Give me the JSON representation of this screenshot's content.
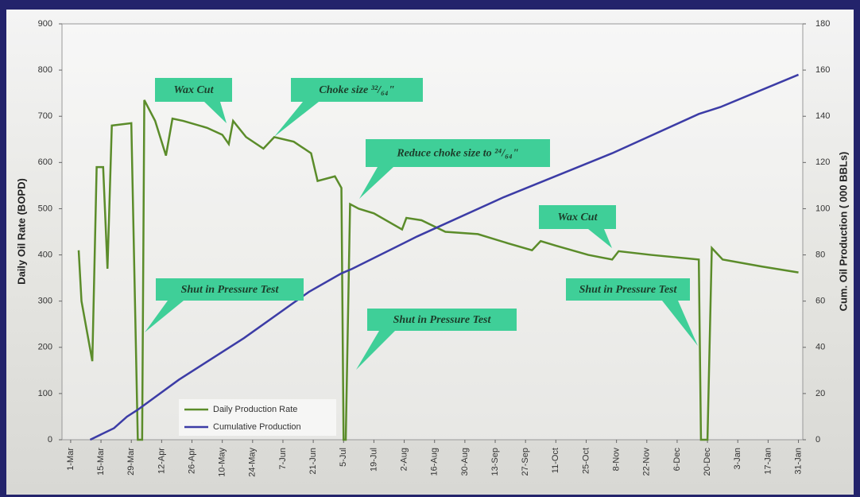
{
  "chart_data": {
    "type": "line",
    "y_label": "Daily Oil Rate (BOPD)",
    "y2_label": "Cum. Oil Production ( 000 BBLs)",
    "xlim": [
      -4,
      338
    ],
    "xticks": [
      {
        "value": 0,
        "label": "1-Mar"
      },
      {
        "value": 14,
        "label": "15-Mar"
      },
      {
        "value": 28,
        "label": "29-Mar"
      },
      {
        "value": 42,
        "label": "12-Apr"
      },
      {
        "value": 56,
        "label": "26-Apr"
      },
      {
        "value": 70,
        "label": "10-May"
      },
      {
        "value": 84,
        "label": "24-May"
      },
      {
        "value": 98,
        "label": "7-Jun"
      },
      {
        "value": 112,
        "label": "21-Jun"
      },
      {
        "value": 126,
        "label": "5-Jul"
      },
      {
        "value": 140,
        "label": "19-Jul"
      },
      {
        "value": 154,
        "label": "2-Aug"
      },
      {
        "value": 168,
        "label": "16-Aug"
      },
      {
        "value": 182,
        "label": "30-Aug"
      },
      {
        "value": 196,
        "label": "13-Sep"
      },
      {
        "value": 210,
        "label": "27-Sep"
      },
      {
        "value": 224,
        "label": "11-Oct"
      },
      {
        "value": 238,
        "label": "25-Oct"
      },
      {
        "value": 252,
        "label": "8-Nov"
      },
      {
        "value": 266,
        "label": "22-Nov"
      },
      {
        "value": 280,
        "label": "6-Dec"
      },
      {
        "value": 294,
        "label": "20-Dec"
      },
      {
        "value": 308,
        "label": "3-Jan"
      },
      {
        "value": 322,
        "label": "17-Jan"
      },
      {
        "value": 336,
        "label": "31-Jan"
      }
    ],
    "ylim": [
      0,
      900
    ],
    "yticks": [
      0,
      100,
      200,
      300,
      400,
      500,
      600,
      700,
      800,
      900
    ],
    "y2lim": [
      0,
      180
    ],
    "y2ticks": [
      0,
      20,
      40,
      60,
      80,
      100,
      120,
      140,
      160,
      180
    ],
    "series": [
      {
        "name": "Daily Production Rate",
        "color": "#5b8c2a",
        "x": [
          3.7,
          5,
          10,
          12,
          15,
          17,
          19,
          28,
          31,
          33,
          34,
          39,
          44,
          47,
          52,
          63,
          70,
          73,
          75,
          81,
          89,
          94,
          103,
          111,
          114,
          122,
          125,
          126,
          127,
          129,
          133,
          140,
          153,
          155,
          162,
          173,
          188,
          202,
          213,
          217,
          224,
          239,
          250,
          253,
          268,
          290,
          291,
          294,
          296,
          301,
          319,
          336
        ],
        "values": [
          410,
          300,
          170,
          590,
          590,
          370,
          680,
          685,
          0,
          0,
          735,
          690,
          615,
          695,
          690,
          675,
          660,
          640,
          690,
          655,
          630,
          655,
          645,
          620,
          560,
          570,
          545,
          0,
          0,
          510,
          500,
          490,
          455,
          480,
          475,
          450,
          445,
          425,
          410,
          430,
          420,
          400,
          390,
          408,
          400,
          390,
          0,
          0,
          415,
          390,
          375,
          362
        ]
      },
      {
        "name": "Cumulative Production",
        "color": "#3c3ca6",
        "axis": "y2",
        "x": [
          9,
          20,
          26,
          31,
          50,
          80,
          110,
          125,
          130,
          160,
          200,
          250,
          290,
          300,
          336
        ],
        "values": [
          0,
          5,
          10,
          13,
          26,
          44,
          64,
          72,
          74,
          88,
          105,
          124,
          141,
          144,
          158
        ]
      }
    ],
    "annotations": [
      "Wax Cut",
      "Choke size ³²/₆₄\"",
      "Reduce choke size to ²⁴/₆₄\"",
      "Wax Cut",
      "Shut in Pressure Test",
      "Shut in Pressure Test",
      "Shut in Pressure Test"
    ]
  }
}
